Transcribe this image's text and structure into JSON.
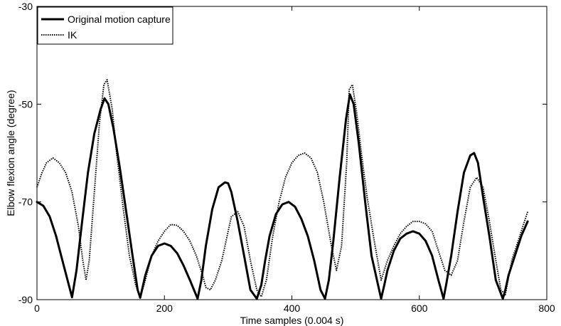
{
  "chart_data": {
    "type": "line",
    "title": "",
    "xlabel": "Time samples (0.004 s)",
    "ylabel": "Elbow flexion angle (degree)",
    "xlim": [
      0,
      800
    ],
    "ylim": [
      -90,
      -30
    ],
    "xticks": [
      "0",
      "200",
      "400",
      "600",
      "800"
    ],
    "yticks": [
      "-90",
      "-70",
      "-50",
      "-30"
    ],
    "grid": false,
    "legend_position": "top-left",
    "series": [
      {
        "name": "Original motion capture",
        "style": "solid",
        "color": "#000000",
        "x": [
          0,
          10,
          20,
          30,
          40,
          50,
          55,
          62,
          70,
          80,
          90,
          100,
          106,
          112,
          120,
          130,
          140,
          150,
          158,
          162,
          170,
          180,
          190,
          200,
          210,
          220,
          230,
          240,
          252,
          258,
          265,
          275,
          285,
          295,
          300,
          305,
          315,
          325,
          335,
          345,
          352,
          358,
          365,
          375,
          385,
          395,
          405,
          415,
          425,
          435,
          445,
          452,
          458,
          465,
          475,
          485,
          491,
          497,
          505,
          515,
          525,
          540,
          545,
          550,
          560,
          570,
          580,
          590,
          600,
          610,
          620,
          630,
          638,
          642,
          650,
          660,
          670,
          680,
          686,
          692,
          700,
          710,
          720,
          731,
          735,
          740,
          750,
          760,
          770
        ],
        "y": [
          -70,
          -70.8,
          -73,
          -77,
          -82,
          -87,
          -89.5,
          -84,
          -75,
          -64,
          -56,
          -51,
          -48.8,
          -50,
          -55,
          -63,
          -72,
          -81,
          -88,
          -89.6,
          -85,
          -81,
          -79,
          -78.5,
          -79,
          -80.5,
          -83,
          -86,
          -89.8,
          -86,
          -79,
          -71.5,
          -67,
          -66,
          -66.2,
          -68,
          -74,
          -81,
          -88,
          -89.8,
          -87,
          -82,
          -77,
          -72.5,
          -70.5,
          -70,
          -71,
          -73.5,
          -77,
          -82,
          -88,
          -89.8,
          -86,
          -78,
          -65,
          -53,
          -48,
          -50,
          -58,
          -70,
          -81,
          -89.8,
          -87,
          -84,
          -80,
          -77.5,
          -76.5,
          -76,
          -76.5,
          -78,
          -81,
          -86,
          -89.8,
          -87,
          -81,
          -72,
          -64,
          -60.5,
          -60,
          -62,
          -69,
          -77,
          -86,
          -89.8,
          -88,
          -85,
          -81,
          -77,
          -74
        ]
      },
      {
        "name": "IK",
        "style": "dotted",
        "color": "#000000",
        "x": [
          0,
          8,
          15,
          25,
          35,
          45,
          55,
          65,
          72,
          77,
          82,
          90,
          98,
          105,
          110,
          118,
          125,
          135,
          145,
          155,
          162,
          170,
          180,
          190,
          200,
          210,
          220,
          230,
          240,
          250,
          260,
          265,
          272,
          280,
          290,
          300,
          305,
          315,
          325,
          335,
          345,
          352,
          360,
          370,
          380,
          390,
          400,
          410,
          420,
          430,
          440,
          450,
          462,
          470,
          478,
          486,
          490,
          495,
          502,
          510,
          518,
          528,
          540,
          550,
          560,
          570,
          580,
          590,
          600,
          610,
          620,
          630,
          640,
          650,
          660,
          670,
          680,
          690,
          700,
          710,
          720,
          728,
          735,
          745,
          755,
          770
        ],
        "y": [
          -67,
          -64,
          -62,
          -61,
          -62,
          -64,
          -68,
          -75,
          -82,
          -86,
          -82,
          -68,
          -54,
          -46,
          -45,
          -51,
          -60,
          -71,
          -81,
          -87,
          -89.6,
          -86,
          -81,
          -78,
          -76,
          -74.6,
          -74.8,
          -76,
          -78,
          -81,
          -85,
          -87.5,
          -88,
          -86,
          -82,
          -76,
          -73,
          -72,
          -75,
          -82,
          -88,
          -89.4,
          -86,
          -77,
          -70,
          -65,
          -62,
          -60.5,
          -60,
          -61,
          -64,
          -70,
          -79,
          -84,
          -79,
          -62,
          -47,
          -46,
          -52,
          -61,
          -69,
          -77,
          -86,
          -82,
          -79,
          -76.5,
          -75,
          -74,
          -74,
          -74.5,
          -76,
          -80,
          -84,
          -85,
          -82,
          -74,
          -67,
          -65,
          -67,
          -74,
          -82,
          -88,
          -89,
          -82,
          -78,
          -72
        ]
      }
    ]
  }
}
